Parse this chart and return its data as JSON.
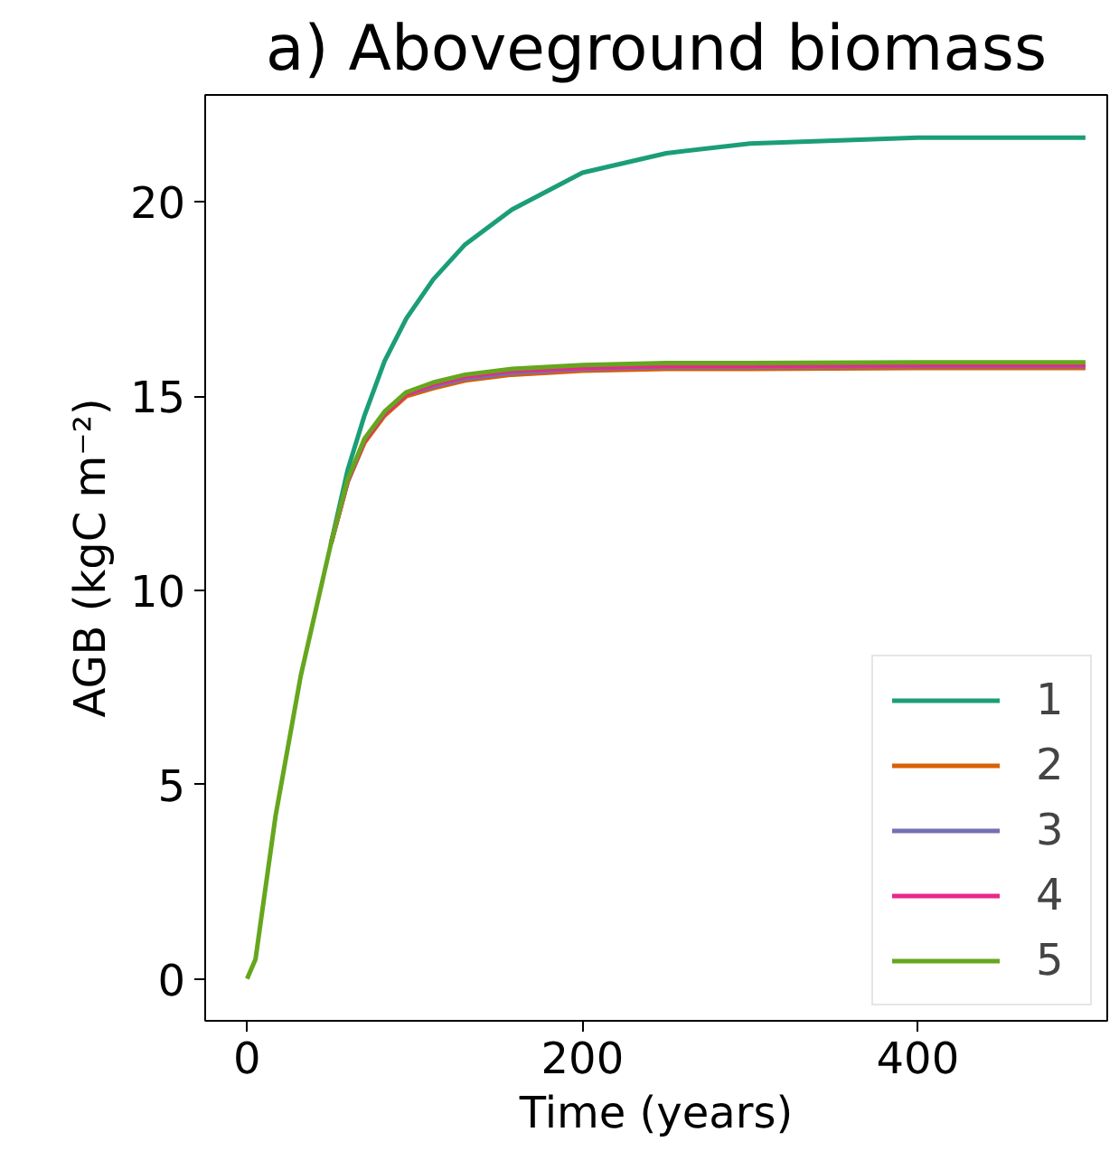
{
  "chart_data": {
    "type": "line",
    "title": "a) Aboveground biomass",
    "xlabel": "Time (years)",
    "ylabel": "AGB (kgC m⁻²)",
    "x": [
      0,
      5,
      17,
      32,
      50,
      60,
      70,
      82,
      95,
      111,
      130,
      158,
      200,
      250,
      300,
      400,
      500
    ],
    "series": [
      {
        "name": "1",
        "color": "#1b9e77",
        "values": [
          null,
          null,
          null,
          null,
          11.2,
          13.1,
          14.5,
          15.9,
          17.0,
          18.0,
          18.9,
          19.8,
          20.75,
          21.25,
          21.5,
          21.65,
          21.65
        ]
      },
      {
        "name": "2",
        "color": "#d95f02",
        "values": [
          null,
          null,
          null,
          null,
          11.2,
          12.8,
          13.8,
          14.5,
          15.0,
          15.2,
          15.4,
          15.55,
          15.65,
          15.7,
          15.7,
          15.72,
          15.72
        ]
      },
      {
        "name": "3",
        "color": "#7570b3",
        "values": [
          null,
          null,
          null,
          null,
          null,
          null,
          null,
          null,
          15.05,
          15.25,
          15.45,
          15.6,
          15.7,
          15.75,
          15.75,
          15.77,
          15.77
        ]
      },
      {
        "name": "4",
        "color": "#e7298a",
        "values": [
          null,
          null,
          null,
          null,
          11.2,
          12.8,
          13.85,
          14.55,
          15.05,
          15.3,
          15.5,
          15.65,
          15.73,
          15.78,
          15.78,
          15.8,
          15.8
        ]
      },
      {
        "name": "5",
        "color": "#66a61e",
        "values": [
          0,
          0.5,
          4.2,
          7.8,
          11.2,
          12.85,
          13.9,
          14.6,
          15.1,
          15.35,
          15.55,
          15.7,
          15.8,
          15.85,
          15.85,
          15.87,
          15.87
        ]
      }
    ],
    "xlim": [
      -25,
      513
    ],
    "ylim": [
      -1.08,
      22.75
    ],
    "xticks": [
      0,
      200,
      400
    ],
    "yticks": [
      0,
      5,
      10,
      15,
      20
    ],
    "grid": false,
    "legend": "bottom right",
    "marker": "none",
    "line_style": "solid"
  }
}
